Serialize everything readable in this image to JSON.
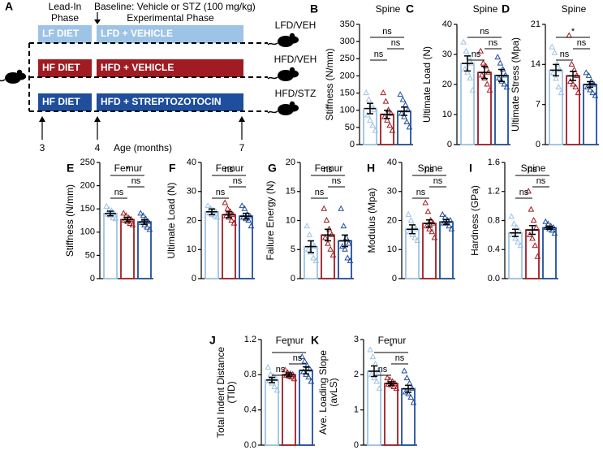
{
  "schematic": {
    "panel": "A",
    "lead_in": [
      "Lead-In",
      "Phase"
    ],
    "baseline": "Baseline: Vehicle or STZ (100 mg/kg)",
    "experimental": "Experimental Phase",
    "rows": [
      {
        "diet": "LF DIET",
        "treatment": "LFD + VEHICLE",
        "group": "LFD/VEH",
        "color": "#9dc3e6"
      },
      {
        "diet": "HF DIET",
        "treatment": "HFD + VEHICLE",
        "group": "HFD/VEH",
        "color": "#a01c22"
      },
      {
        "diet": "HF DIET",
        "treatment": "HFD + STREPTOZOTOCIN",
        "group": "HFD/STZ",
        "color": "#1f4e9c"
      }
    ],
    "ages": [
      3,
      4,
      7
    ],
    "age_label": "Age (months)"
  },
  "chart_data": [
    {
      "type": "bar",
      "panel": "B",
      "title": "Spine",
      "ylabel": [
        "Stiffness (N/mm)"
      ],
      "colors": [
        "#9dc3e6",
        "#a01c22",
        "#1f4e9c"
      ],
      "values": [
        105,
        88,
        97
      ],
      "errors": [
        15,
        12,
        12
      ],
      "points": [
        [
          150,
          130,
          115,
          100,
          85,
          70,
          55,
          40
        ],
        [
          150,
          125,
          100,
          90,
          80,
          70,
          55,
          40
        ],
        [
          145,
          130,
          115,
          100,
          90,
          80,
          65,
          50
        ]
      ],
      "ylim": [
        0,
        350
      ],
      "yticks": [
        0,
        50,
        100,
        150,
        200,
        250,
        300,
        350
      ],
      "significance": [
        "ns",
        "ns",
        "ns"
      ]
    },
    {
      "type": "bar",
      "panel": "C",
      "title": "Spine",
      "ylabel": [
        "Ultimate Load (N)"
      ],
      "colors": [
        "#9dc3e6",
        "#a01c22",
        "#1f4e9c"
      ],
      "values": [
        27,
        24,
        23
      ],
      "errors": [
        2.5,
        2,
        2
      ],
      "points": [
        [
          34,
          31,
          29,
          27,
          25,
          24,
          22,
          18
        ],
        [
          31,
          27,
          26,
          24,
          23,
          22,
          20,
          18
        ],
        [
          29,
          27,
          25,
          23,
          22,
          21,
          20,
          19
        ]
      ],
      "ylim": [
        0,
        40
      ],
      "yticks": [
        0,
        10,
        20,
        30,
        40
      ],
      "significance": [
        "ns",
        "ns",
        "ns"
      ]
    },
    {
      "type": "bar",
      "panel": "D",
      "title": "Spine",
      "ylabel": [
        "Ultimate Stress (Mpa)"
      ],
      "colors": [
        "#9dc3e6",
        "#a01c22",
        "#1f4e9c"
      ],
      "values": [
        13,
        12,
        10.5
      ],
      "errors": [
        1,
        0.8,
        0.5
      ],
      "points": [
        [
          17,
          16,
          14,
          13,
          12.5,
          11.5,
          10,
          9
        ],
        [
          19,
          14,
          13,
          12,
          11,
          10.5,
          10,
          9
        ],
        [
          12.5,
          12,
          11,
          10.5,
          10,
          9.5,
          9,
          8.5
        ]
      ],
      "ylim": [
        0,
        21
      ],
      "yticks": [
        0,
        7,
        14,
        21
      ],
      "significance": [
        "ns",
        "ns",
        "*"
      ]
    },
    {
      "type": "bar",
      "panel": "E",
      "title": "Femur",
      "ylabel": [
        "Stiffness (N/mm)"
      ],
      "colors": [
        "#9dc3e6",
        "#a01c22",
        "#1f4e9c"
      ],
      "values": [
        140,
        127,
        122
      ],
      "errors": [
        5,
        5,
        5
      ],
      "points": [
        [
          155,
          148,
          145,
          140,
          138,
          135,
          130,
          128
        ],
        [
          140,
          135,
          130,
          127,
          125,
          122,
          118,
          115
        ],
        [
          140,
          135,
          128,
          122,
          120,
          115,
          110,
          105
        ]
      ],
      "ylim": [
        0,
        250
      ],
      "yticks": [
        0,
        50,
        100,
        150,
        200,
        250
      ],
      "significance": [
        "ns",
        "ns",
        "*"
      ]
    },
    {
      "type": "bar",
      "panel": "F",
      "title": "Femur",
      "ylabel": [
        "Ultimate Load (N)"
      ],
      "colors": [
        "#9dc3e6",
        "#a01c22",
        "#1f4e9c"
      ],
      "values": [
        23,
        22,
        21.5
      ],
      "errors": [
        1,
        1,
        1
      ],
      "points": [
        [
          25,
          24,
          23.5,
          23,
          22.5,
          22,
          21.5,
          21
        ],
        [
          26,
          24,
          23,
          22,
          21.5,
          21,
          20,
          19
        ],
        [
          25,
          24,
          22,
          21.5,
          21,
          20.5,
          20,
          18
        ]
      ],
      "ylim": [
        0,
        40
      ],
      "yticks": [
        0,
        10,
        20,
        30,
        40
      ],
      "significance": [
        "ns",
        "ns",
        "ns"
      ]
    },
    {
      "type": "bar",
      "panel": "G",
      "title": "Femur",
      "ylabel": [
        "Failure Energy (N)"
      ],
      "colors": [
        "#9dc3e6",
        "#a01c22",
        "#1f4e9c"
      ],
      "values": [
        5.5,
        7.5,
        6.5
      ],
      "errors": [
        1,
        1,
        1
      ],
      "points": [
        [
          9,
          7.5,
          6,
          5.5,
          5,
          4.5,
          3.5,
          3
        ],
        [
          12,
          10,
          8.5,
          7.5,
          7,
          6,
          5,
          4
        ],
        [
          12,
          9,
          7,
          6,
          5.5,
          5,
          3.5,
          3
        ]
      ],
      "ylim": [
        0,
        20
      ],
      "yticks": [
        0,
        5,
        10,
        15,
        20
      ],
      "significance": [
        "ns",
        "ns",
        "ns"
      ]
    },
    {
      "type": "bar",
      "panel": "H",
      "title": "Spine",
      "ylabel": [
        "Modulus (Mpa)"
      ],
      "colors": [
        "#9dc3e6",
        "#a01c22",
        "#1f4e9c"
      ],
      "values": [
        17,
        19,
        19.5
      ],
      "errors": [
        1.5,
        1.2,
        0.8
      ],
      "points": [
        [
          22,
          20,
          18,
          17,
          16,
          15,
          14,
          13
        ],
        [
          26,
          23,
          20,
          19,
          18,
          17,
          16,
          14
        ],
        [
          22,
          21,
          20,
          20,
          19,
          19,
          18,
          17
        ]
      ],
      "ylim": [
        0,
        40
      ],
      "yticks": [
        0,
        10,
        20,
        30,
        40
      ],
      "significance": [
        "ns",
        "ns",
        "ns"
      ]
    },
    {
      "type": "bar",
      "panel": "I",
      "title": "Spine",
      "ylabel": [
        "Hardness (GPa)"
      ],
      "colors": [
        "#9dc3e6",
        "#a01c22",
        "#1f4e9c"
      ],
      "values": [
        0.63,
        0.67,
        0.7
      ],
      "errors": [
        0.05,
        0.06,
        0.02
      ],
      "points": [
        [
          0.85,
          0.75,
          0.7,
          0.65,
          0.6,
          0.55,
          0.5,
          0.45
        ],
        [
          1.2,
          0.95,
          0.8,
          0.7,
          0.6,
          0.55,
          0.45,
          0.3
        ],
        [
          0.78,
          0.75,
          0.72,
          0.7,
          0.7,
          0.68,
          0.66,
          0.62
        ]
      ],
      "ylim": [
        0,
        1.6
      ],
      "yticks": [
        {
          "value": 0,
          "label": "0.0"
        },
        0.4,
        0.8,
        1.2,
        1.6
      ],
      "significance": [
        "ns",
        "ns",
        "ns"
      ]
    },
    {
      "type": "bar",
      "panel": "J",
      "title": "Femur",
      "ylabel": [
        "Total Indent Distance",
        "(TID)"
      ],
      "colors": [
        "#9dc3e6",
        "#a01c22",
        "#1f4e9c"
      ],
      "values": [
        0.74,
        0.8,
        0.85
      ],
      "errors": [
        0.03,
        0.02,
        0.04
      ],
      "points": [
        [
          0.88,
          0.8,
          0.78,
          0.75,
          0.73,
          0.7,
          0.66,
          0.62
        ],
        [
          0.85,
          0.82,
          0.81,
          0.8,
          0.79,
          0.78,
          0.77,
          0.75
        ],
        [
          1.0,
          0.95,
          0.9,
          0.86,
          0.83,
          0.8,
          0.77,
          0.72
        ]
      ],
      "ylim": [
        0,
        1.2
      ],
      "yticks": [
        {
          "value": 0,
          "label": "0.0"
        },
        0.4,
        0.8,
        1.2
      ],
      "significance": [
        "ns",
        "ns",
        "*"
      ]
    },
    {
      "type": "bar",
      "panel": "K",
      "title": "Femur",
      "ylabel": [
        "Ave. Loading Slope",
        "(avLS)"
      ],
      "colors": [
        "#9dc3e6",
        "#a01c22",
        "#1f4e9c"
      ],
      "values": [
        2.1,
        1.75,
        1.6
      ],
      "errors": [
        0.15,
        0.05,
        0.1
      ],
      "points": [
        [
          2.7,
          2.5,
          2.3,
          2.1,
          2.0,
          1.9,
          1.8,
          1.6
        ],
        [
          1.9,
          1.85,
          1.8,
          1.75,
          1.72,
          1.7,
          1.65,
          1.6
        ],
        [
          2.1,
          1.9,
          1.75,
          1.6,
          1.5,
          1.45,
          1.35,
          1.2
        ]
      ],
      "ylim": [
        0,
        3
      ],
      "yticks": [
        0,
        1,
        2,
        3
      ],
      "significance": [
        "ns",
        "ns",
        "*"
      ]
    }
  ]
}
